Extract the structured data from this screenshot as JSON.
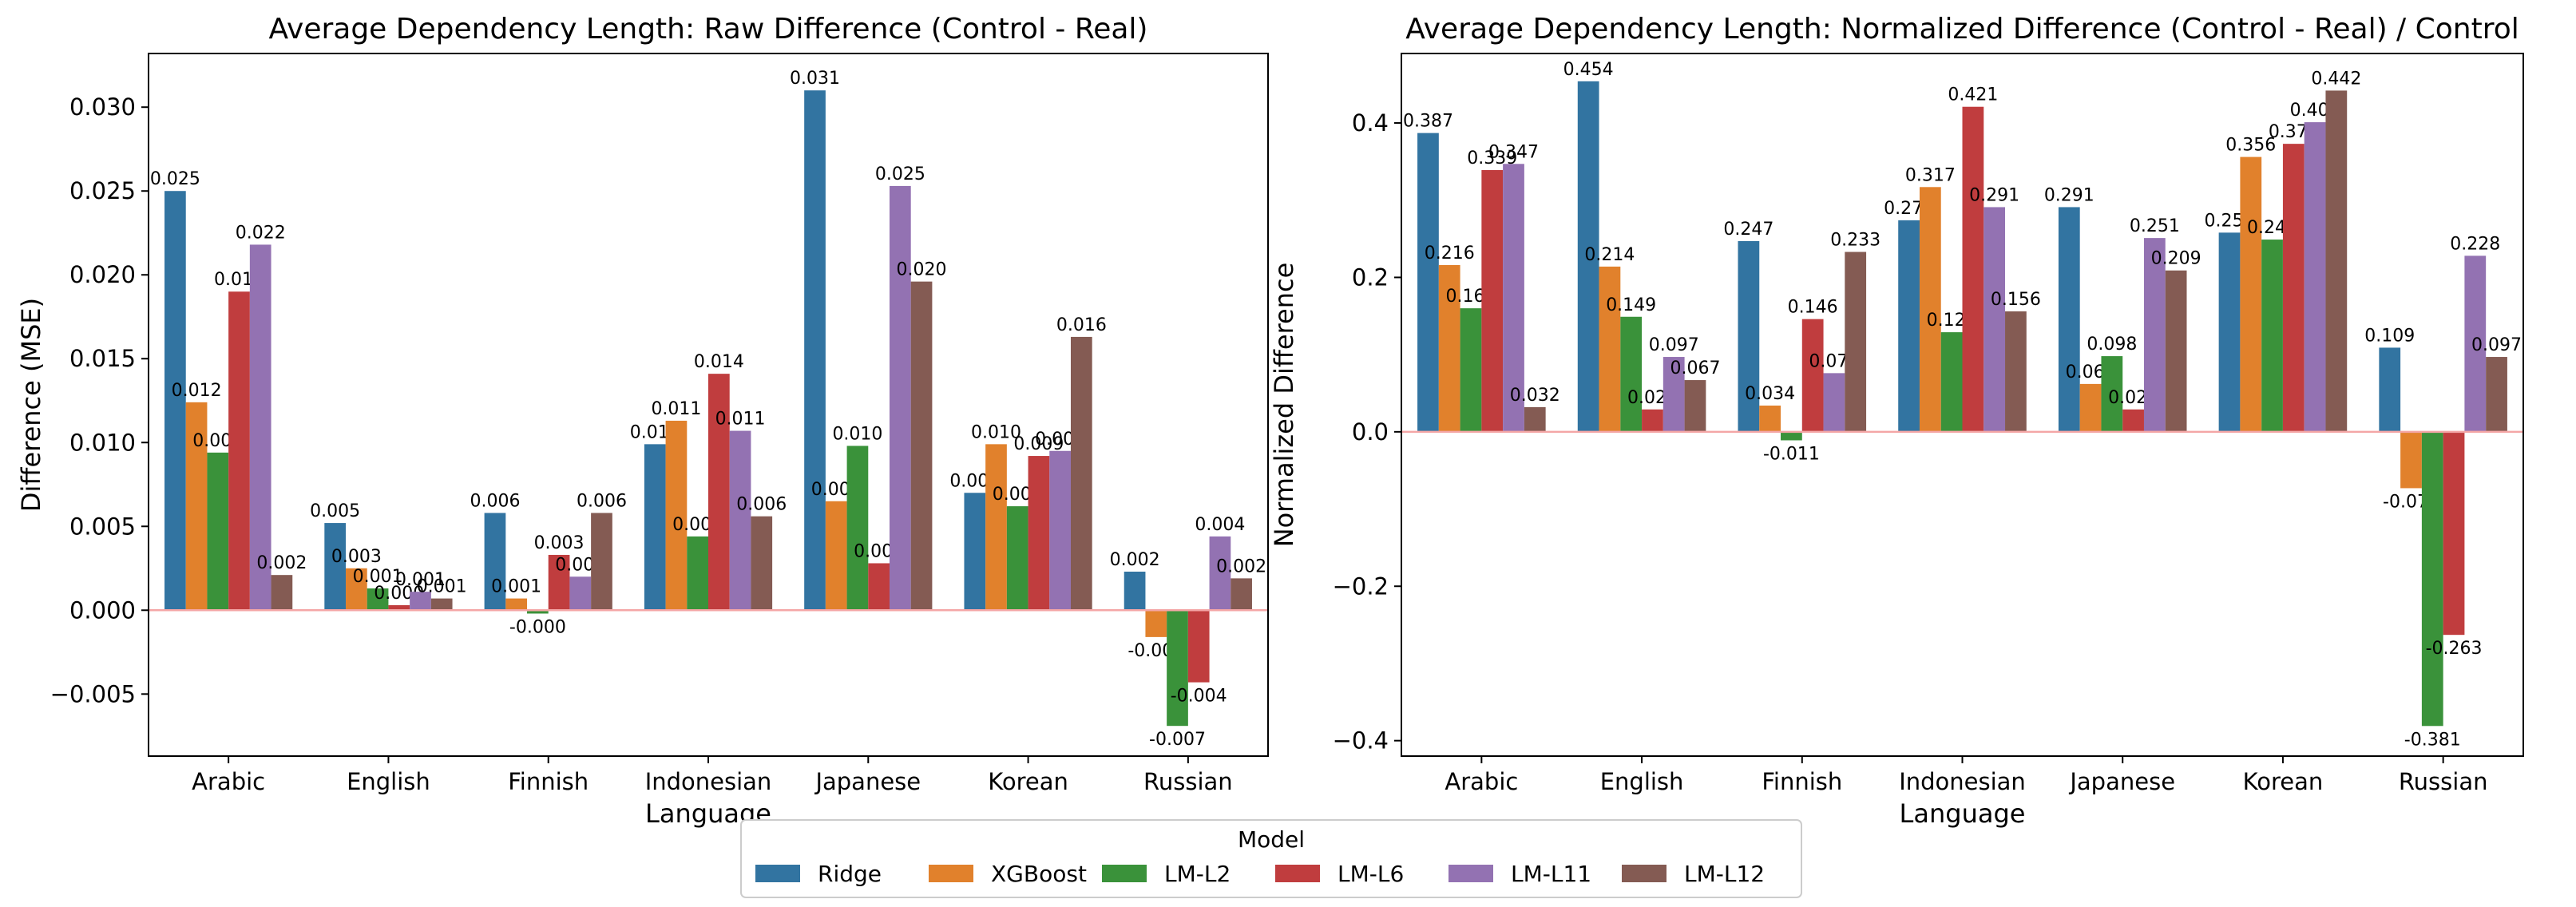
{
  "legend": {
    "title": "Model",
    "placement": "bottom-center"
  },
  "colors": {
    "Ridge": "#3274a1",
    "XGBoost": "#e1812c",
    "LM-L2": "#3a923a",
    "LM-L6": "#c03d3e",
    "LM-L11": "#9372b2",
    "LM-L12": "#845b53",
    "zero_line": "#f4a6a6"
  },
  "chart_data": [
    {
      "type": "bar",
      "title": "Average Dependency Length: Raw Difference (Control - Real)",
      "xlabel": "Language",
      "ylabel": "Difference (MSE)",
      "ylim": [
        -0.0087,
        0.0332
      ],
      "yticks": [
        -0.005,
        0.0,
        0.005,
        0.01,
        0.015,
        0.02,
        0.025,
        0.03
      ],
      "ytick_labels": [
        "−0.005",
        "0.000",
        "0.005",
        "0.010",
        "0.015",
        "0.020",
        "0.025",
        "0.030"
      ],
      "categories": [
        "Arabic",
        "English",
        "Finnish",
        "Indonesian",
        "Japanese",
        "Korean",
        "Russian"
      ],
      "grid": false,
      "series": [
        {
          "name": "Ridge",
          "values": [
            0.025,
            0.0052,
            0.0058,
            0.0099,
            0.031,
            0.007,
            0.0023
          ],
          "labels": [
            "0.025",
            "0.005",
            "0.006",
            "0.010",
            "0.031",
            "0.007",
            "0.002"
          ]
        },
        {
          "name": "XGBoost",
          "values": [
            0.0124,
            0.0025,
            0.0007,
            0.0113,
            0.0065,
            0.0099,
            -0.0016
          ],
          "labels": [
            "0.012",
            "0.003",
            "0.001",
            "0.011",
            "0.006",
            "0.010",
            "-0.002"
          ]
        },
        {
          "name": "LM-L2",
          "values": [
            0.0094,
            0.0013,
            -0.0002,
            0.0044,
            0.0098,
            0.0062,
            -0.0069
          ],
          "labels": [
            "0.009",
            "0.001",
            "-0.000",
            "0.004",
            "0.010",
            "0.006",
            "-0.007"
          ]
        },
        {
          "name": "LM-L6",
          "values": [
            0.019,
            0.0003,
            0.0033,
            0.0141,
            0.0028,
            0.0092,
            -0.0043
          ],
          "labels": [
            "0.019",
            "0.000",
            "0.003",
            "0.014",
            "0.003",
            "0.009",
            "-0.004"
          ]
        },
        {
          "name": "LM-L11",
          "values": [
            0.0218,
            0.0011,
            0.002,
            0.0107,
            0.0253,
            0.0095,
            0.0044
          ],
          "labels": [
            "0.022",
            "0.001",
            "0.002",
            "0.011",
            "0.025",
            "0.009",
            "0.004"
          ]
        },
        {
          "name": "LM-L12",
          "values": [
            0.0021,
            0.0007,
            0.0058,
            0.0056,
            0.0196,
            0.0163,
            0.0019
          ],
          "labels": [
            "0.002",
            "0.001",
            "0.006",
            "0.006",
            "0.020",
            "0.016",
            "0.002"
          ]
        }
      ]
    },
    {
      "type": "bar",
      "title": "Average Dependency Length: Normalized Difference (Control - Real) / Control",
      "xlabel": "Language",
      "ylabel": "Normalized Difference",
      "ylim": [
        -0.42,
        0.49
      ],
      "yticks": [
        -0.4,
        -0.2,
        0.0,
        0.2,
        0.4
      ],
      "ytick_labels": [
        "−0.4",
        "−0.2",
        "0.0",
        "0.2",
        "0.4"
      ],
      "categories": [
        "Arabic",
        "English",
        "Finnish",
        "Indonesian",
        "Japanese",
        "Korean",
        "Russian"
      ],
      "grid": false,
      "series": [
        {
          "name": "Ridge",
          "values": [
            0.387,
            0.454,
            0.247,
            0.274,
            0.291,
            0.258,
            0.109
          ],
          "labels": [
            "0.387",
            "0.454",
            "0.247",
            "0.274",
            "0.291",
            "0.258",
            "0.109"
          ]
        },
        {
          "name": "XGBoost",
          "values": [
            0.216,
            0.214,
            0.034,
            0.317,
            0.062,
            0.356,
            -0.073
          ],
          "labels": [
            "0.216",
            "0.214",
            "0.034",
            "0.317",
            "0.062",
            "0.356",
            "-0.073"
          ]
        },
        {
          "name": "LM-L2",
          "values": [
            0.16,
            0.149,
            -0.011,
            0.129,
            0.098,
            0.249,
            -0.381
          ],
          "labels": [
            "0.160",
            "0.149",
            "-0.011",
            "0.129",
            "0.098",
            "0.249",
            "-0.381"
          ]
        },
        {
          "name": "LM-L6",
          "values": [
            0.339,
            0.029,
            0.146,
            0.421,
            0.029,
            0.373,
            -0.263
          ],
          "labels": [
            "0.339",
            "0.029",
            "0.146",
            "0.421",
            "0.029",
            "0.373",
            "-0.263"
          ]
        },
        {
          "name": "LM-L11",
          "values": [
            0.347,
            0.097,
            0.076,
            0.291,
            0.251,
            0.401,
            0.228
          ],
          "labels": [
            "0.347",
            "0.097",
            "0.076",
            "0.291",
            "0.251",
            "0.401",
            "0.228"
          ]
        },
        {
          "name": "LM-L12",
          "values": [
            0.032,
            0.067,
            0.233,
            0.156,
            0.209,
            0.442,
            0.097
          ],
          "labels": [
            "0.032",
            "0.067",
            "0.233",
            "0.156",
            "0.209",
            "0.442",
            "0.097"
          ]
        }
      ]
    }
  ]
}
